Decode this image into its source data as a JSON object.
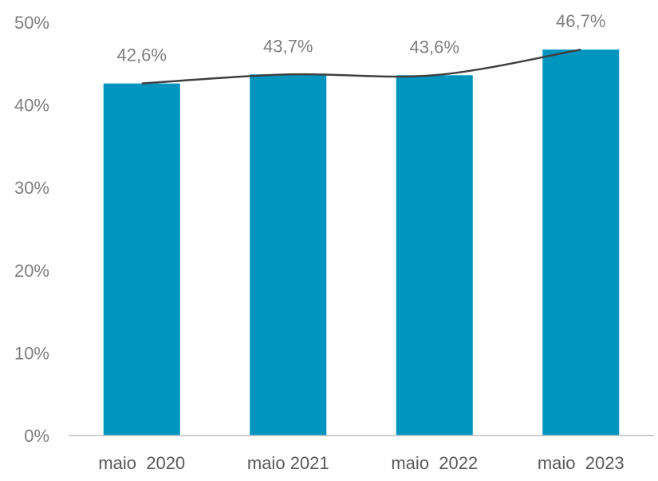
{
  "chart_data": {
    "type": "bar",
    "categories": [
      "maio  2020",
      "maio 2021",
      "maio  2022",
      "maio  2023"
    ],
    "values": [
      42.6,
      43.7,
      43.6,
      46.7
    ],
    "data_labels": [
      "42,6%",
      "43,7%",
      "43,6%",
      "46,7%"
    ],
    "title": "",
    "xlabel": "",
    "ylabel": "",
    "ylim": [
      0,
      50
    ],
    "y_ticks": [
      0,
      10,
      20,
      30,
      40,
      50
    ],
    "y_tick_labels": [
      "0%",
      "10%",
      "20%",
      "30%",
      "40%",
      "50%"
    ],
    "trendline": true,
    "grid": false,
    "legend": "none",
    "colors": {
      "bar": "#0095BE",
      "trendline": "#404040",
      "axis": "#BFBFBF",
      "label": "#7F7F7F",
      "category_label": "#595959"
    }
  }
}
